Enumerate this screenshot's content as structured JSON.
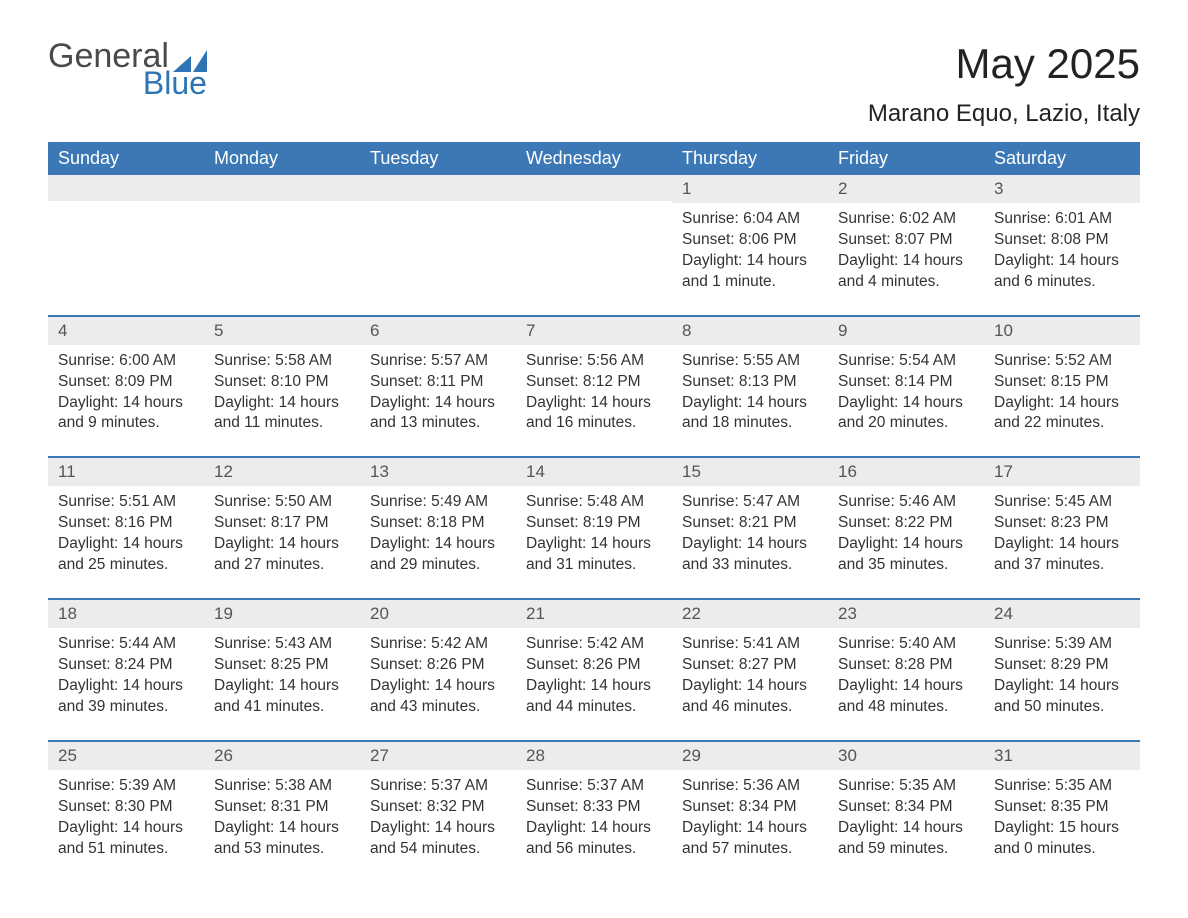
{
  "logo": {
    "text_general": "General",
    "text_blue": "Blue",
    "icon_color": "#2f75b5"
  },
  "title": "May 2025",
  "location": "Marano Equo, Lazio, Italy",
  "colors": {
    "header_bg": "#3b78b5",
    "header_text": "#ffffff",
    "daynum_bg": "#ececec",
    "daynum_text": "#555555",
    "body_text": "#333333",
    "rule": "#3b78b5",
    "page_bg": "#ffffff"
  },
  "weekdays": [
    "Sunday",
    "Monday",
    "Tuesday",
    "Wednesday",
    "Thursday",
    "Friday",
    "Saturday"
  ],
  "weeks": [
    [
      {
        "n": "",
        "sunrise": "",
        "sunset": "",
        "daylight": ""
      },
      {
        "n": "",
        "sunrise": "",
        "sunset": "",
        "daylight": ""
      },
      {
        "n": "",
        "sunrise": "",
        "sunset": "",
        "daylight": ""
      },
      {
        "n": "",
        "sunrise": "",
        "sunset": "",
        "daylight": ""
      },
      {
        "n": "1",
        "sunrise": "Sunrise: 6:04 AM",
        "sunset": "Sunset: 8:06 PM",
        "daylight": "Daylight: 14 hours and 1 minute."
      },
      {
        "n": "2",
        "sunrise": "Sunrise: 6:02 AM",
        "sunset": "Sunset: 8:07 PM",
        "daylight": "Daylight: 14 hours and 4 minutes."
      },
      {
        "n": "3",
        "sunrise": "Sunrise: 6:01 AM",
        "sunset": "Sunset: 8:08 PM",
        "daylight": "Daylight: 14 hours and 6 minutes."
      }
    ],
    [
      {
        "n": "4",
        "sunrise": "Sunrise: 6:00 AM",
        "sunset": "Sunset: 8:09 PM",
        "daylight": "Daylight: 14 hours and 9 minutes."
      },
      {
        "n": "5",
        "sunrise": "Sunrise: 5:58 AM",
        "sunset": "Sunset: 8:10 PM",
        "daylight": "Daylight: 14 hours and 11 minutes."
      },
      {
        "n": "6",
        "sunrise": "Sunrise: 5:57 AM",
        "sunset": "Sunset: 8:11 PM",
        "daylight": "Daylight: 14 hours and 13 minutes."
      },
      {
        "n": "7",
        "sunrise": "Sunrise: 5:56 AM",
        "sunset": "Sunset: 8:12 PM",
        "daylight": "Daylight: 14 hours and 16 minutes."
      },
      {
        "n": "8",
        "sunrise": "Sunrise: 5:55 AM",
        "sunset": "Sunset: 8:13 PM",
        "daylight": "Daylight: 14 hours and 18 minutes."
      },
      {
        "n": "9",
        "sunrise": "Sunrise: 5:54 AM",
        "sunset": "Sunset: 8:14 PM",
        "daylight": "Daylight: 14 hours and 20 minutes."
      },
      {
        "n": "10",
        "sunrise": "Sunrise: 5:52 AM",
        "sunset": "Sunset: 8:15 PM",
        "daylight": "Daylight: 14 hours and 22 minutes."
      }
    ],
    [
      {
        "n": "11",
        "sunrise": "Sunrise: 5:51 AM",
        "sunset": "Sunset: 8:16 PM",
        "daylight": "Daylight: 14 hours and 25 minutes."
      },
      {
        "n": "12",
        "sunrise": "Sunrise: 5:50 AM",
        "sunset": "Sunset: 8:17 PM",
        "daylight": "Daylight: 14 hours and 27 minutes."
      },
      {
        "n": "13",
        "sunrise": "Sunrise: 5:49 AM",
        "sunset": "Sunset: 8:18 PM",
        "daylight": "Daylight: 14 hours and 29 minutes."
      },
      {
        "n": "14",
        "sunrise": "Sunrise: 5:48 AM",
        "sunset": "Sunset: 8:19 PM",
        "daylight": "Daylight: 14 hours and 31 minutes."
      },
      {
        "n": "15",
        "sunrise": "Sunrise: 5:47 AM",
        "sunset": "Sunset: 8:21 PM",
        "daylight": "Daylight: 14 hours and 33 minutes."
      },
      {
        "n": "16",
        "sunrise": "Sunrise: 5:46 AM",
        "sunset": "Sunset: 8:22 PM",
        "daylight": "Daylight: 14 hours and 35 minutes."
      },
      {
        "n": "17",
        "sunrise": "Sunrise: 5:45 AM",
        "sunset": "Sunset: 8:23 PM",
        "daylight": "Daylight: 14 hours and 37 minutes."
      }
    ],
    [
      {
        "n": "18",
        "sunrise": "Sunrise: 5:44 AM",
        "sunset": "Sunset: 8:24 PM",
        "daylight": "Daylight: 14 hours and 39 minutes."
      },
      {
        "n": "19",
        "sunrise": "Sunrise: 5:43 AM",
        "sunset": "Sunset: 8:25 PM",
        "daylight": "Daylight: 14 hours and 41 minutes."
      },
      {
        "n": "20",
        "sunrise": "Sunrise: 5:42 AM",
        "sunset": "Sunset: 8:26 PM",
        "daylight": "Daylight: 14 hours and 43 minutes."
      },
      {
        "n": "21",
        "sunrise": "Sunrise: 5:42 AM",
        "sunset": "Sunset: 8:26 PM",
        "daylight": "Daylight: 14 hours and 44 minutes."
      },
      {
        "n": "22",
        "sunrise": "Sunrise: 5:41 AM",
        "sunset": "Sunset: 8:27 PM",
        "daylight": "Daylight: 14 hours and 46 minutes."
      },
      {
        "n": "23",
        "sunrise": "Sunrise: 5:40 AM",
        "sunset": "Sunset: 8:28 PM",
        "daylight": "Daylight: 14 hours and 48 minutes."
      },
      {
        "n": "24",
        "sunrise": "Sunrise: 5:39 AM",
        "sunset": "Sunset: 8:29 PM",
        "daylight": "Daylight: 14 hours and 50 minutes."
      }
    ],
    [
      {
        "n": "25",
        "sunrise": "Sunrise: 5:39 AM",
        "sunset": "Sunset: 8:30 PM",
        "daylight": "Daylight: 14 hours and 51 minutes."
      },
      {
        "n": "26",
        "sunrise": "Sunrise: 5:38 AM",
        "sunset": "Sunset: 8:31 PM",
        "daylight": "Daylight: 14 hours and 53 minutes."
      },
      {
        "n": "27",
        "sunrise": "Sunrise: 5:37 AM",
        "sunset": "Sunset: 8:32 PM",
        "daylight": "Daylight: 14 hours and 54 minutes."
      },
      {
        "n": "28",
        "sunrise": "Sunrise: 5:37 AM",
        "sunset": "Sunset: 8:33 PM",
        "daylight": "Daylight: 14 hours and 56 minutes."
      },
      {
        "n": "29",
        "sunrise": "Sunrise: 5:36 AM",
        "sunset": "Sunset: 8:34 PM",
        "daylight": "Daylight: 14 hours and 57 minutes."
      },
      {
        "n": "30",
        "sunrise": "Sunrise: 5:35 AM",
        "sunset": "Sunset: 8:34 PM",
        "daylight": "Daylight: 14 hours and 59 minutes."
      },
      {
        "n": "31",
        "sunrise": "Sunrise: 5:35 AM",
        "sunset": "Sunset: 8:35 PM",
        "daylight": "Daylight: 15 hours and 0 minutes."
      }
    ]
  ]
}
